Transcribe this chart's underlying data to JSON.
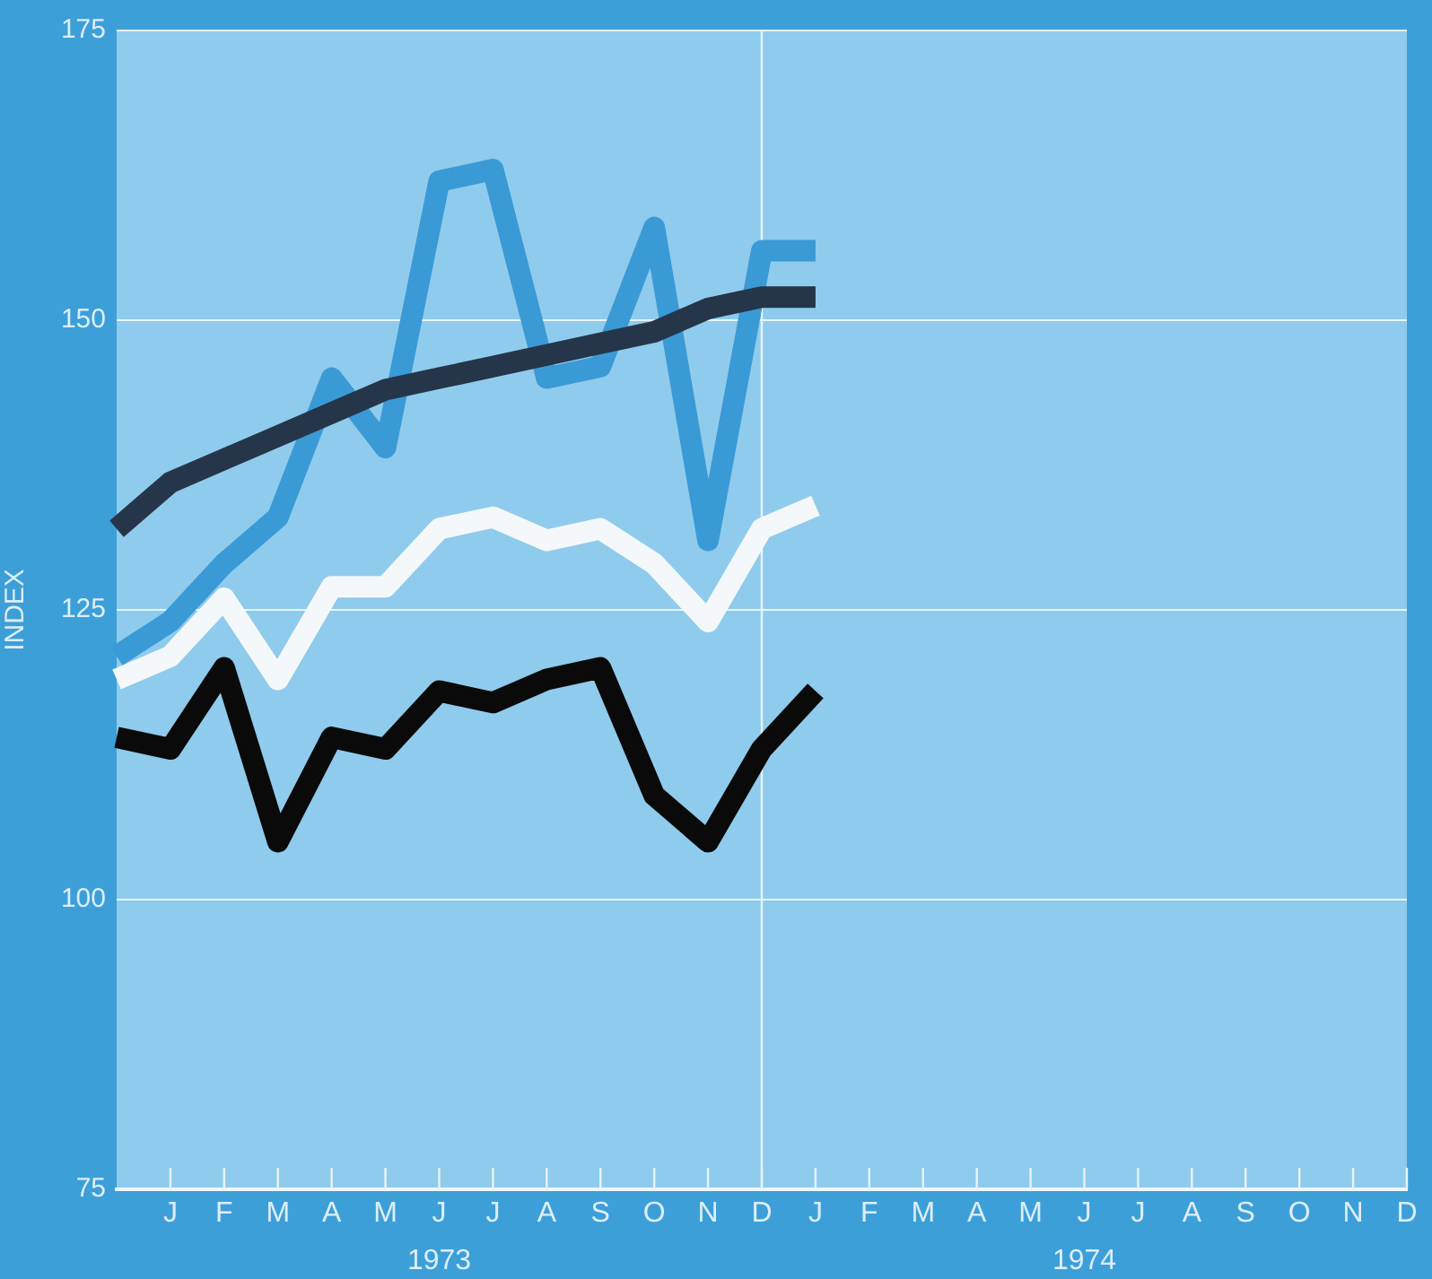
{
  "chart_data": {
    "type": "line",
    "ylabel": "INDEX",
    "categories": [
      null,
      "J",
      "F",
      "M",
      "A",
      "M",
      "J",
      "J",
      "A",
      "S",
      "O",
      "N",
      "D",
      "J",
      "F",
      "M",
      "A",
      "M",
      "J",
      "J",
      "A",
      "S",
      "O",
      "N",
      "D"
    ],
    "series": [
      {
        "color": "#26364a",
        "values": [
          132,
          136,
          138,
          140,
          142,
          144,
          145,
          146,
          147,
          148,
          149,
          151,
          152,
          152,
          null,
          null,
          null,
          null,
          null,
          null,
          null,
          null,
          null,
          null,
          null
        ]
      },
      {
        "color": "#3a9ad6",
        "values": [
          121,
          124,
          129,
          133,
          145,
          139,
          162,
          163,
          145,
          146,
          158,
          131,
          156,
          156,
          null,
          null,
          null,
          null,
          null,
          null,
          null,
          null,
          null,
          null,
          null
        ]
      },
      {
        "color": "#f4f8fa",
        "values": [
          119,
          121,
          126,
          119,
          127,
          127,
          132,
          133,
          131,
          132,
          129,
          124,
          132,
          134,
          null,
          null,
          null,
          null,
          null,
          null,
          null,
          null,
          null,
          null,
          null
        ]
      },
      {
        "color": "#0a0a0a",
        "values": [
          114,
          113,
          120,
          105,
          114,
          113,
          118,
          117,
          119,
          120,
          109,
          105,
          113,
          118,
          null,
          null,
          null,
          null,
          null,
          null,
          null,
          null,
          null,
          null,
          null
        ]
      }
    ],
    "ylim": [
      75,
      175
    ],
    "yticks": [
      75,
      100,
      125,
      150,
      175
    ],
    "ref_lines": [
      {
        "axis": "x",
        "value": "D",
        "color": "#e8f4fb"
      }
    ],
    "annotations": [
      "1973",
      "1974"
    ],
    "grid": "y",
    "legend": false,
    "marker": "none",
    "line_style": "solid"
  }
}
